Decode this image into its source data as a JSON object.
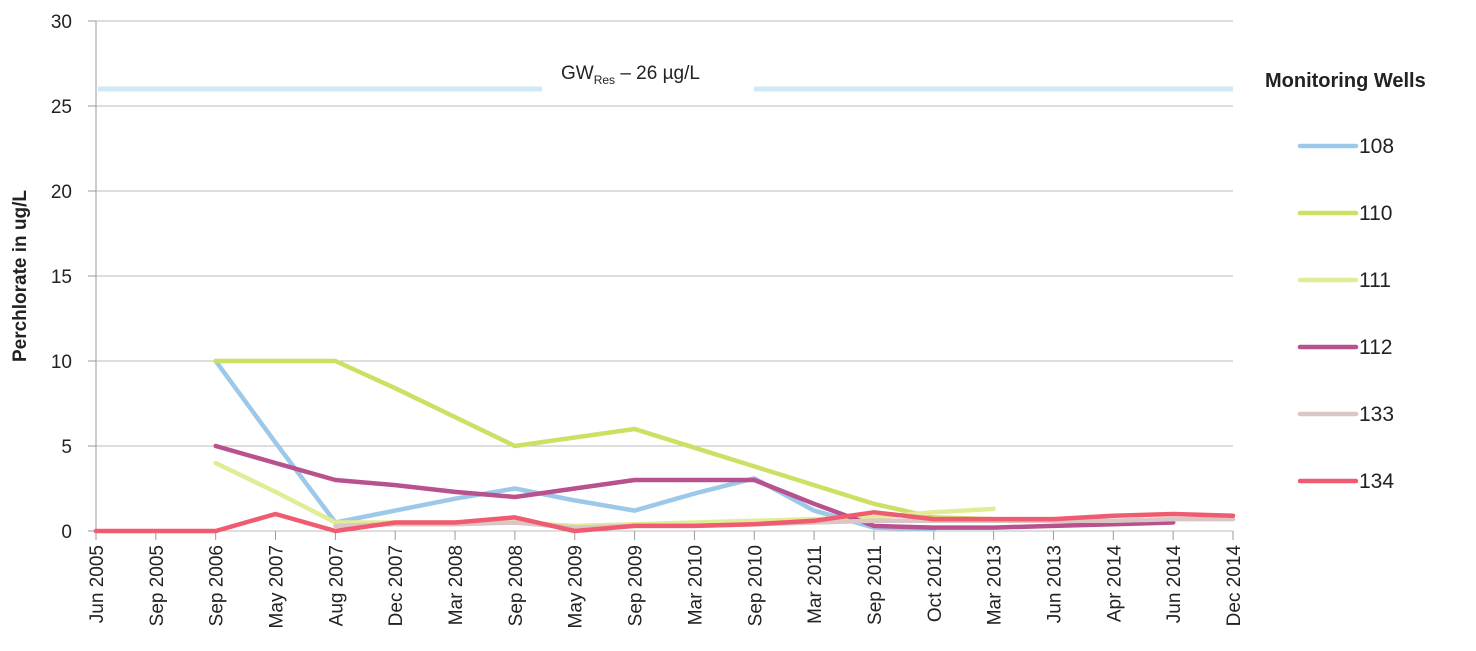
{
  "chart_data": {
    "type": "line",
    "title": "",
    "xlabel": "",
    "ylabel": "Perchlorate in ug/L",
    "ylim": [
      0,
      30
    ],
    "yticks": [
      0,
      5,
      10,
      15,
      20,
      25,
      30
    ],
    "grid": true,
    "legend_title": "Monitoring Wells",
    "legend_position": "right",
    "categories": [
      "Jun 2005",
      "Sep 2005",
      "Sep 2006",
      "May 2007",
      "Aug 2007",
      "Dec 2007",
      "Mar 2008",
      "Sep 2008",
      "May 2009",
      "Sep 2009",
      "Mar 2010",
      "Sep 2010",
      "Mar 2011",
      "Sep 2011",
      "Oct 2012",
      "Mar 2013",
      "Jun 2013",
      "Apr 2014",
      "Jun 2014",
      "Dec 2014"
    ],
    "reference_line": {
      "value": 26,
      "label_main": "GW",
      "label_sub": "Res",
      "label_rest": " – 26 µg/L",
      "color": "#cfe9f6"
    },
    "series": [
      {
        "name": "108",
        "color": "#9cc9ea",
        "values": [
          null,
          null,
          10,
          5.2,
          0.5,
          1.2,
          1.9,
          2.5,
          1.8,
          1.2,
          2.2,
          3.1,
          1.2,
          0.2,
          0.1,
          null,
          null,
          null,
          null,
          null
        ]
      },
      {
        "name": "110",
        "color": "#cde064",
        "values": [
          null,
          null,
          10,
          10,
          10,
          8.4,
          6.7,
          5,
          5.5,
          6,
          4.9,
          3.8,
          2.7,
          1.6,
          0.8,
          0.7,
          null,
          null,
          null,
          null
        ]
      },
      {
        "name": "111",
        "color": "#e2ec96",
        "values": [
          null,
          null,
          4,
          2.3,
          0.5,
          0.5,
          0.5,
          0.5,
          0.3,
          0.4,
          0.5,
          0.6,
          0.7,
          0.8,
          1.1,
          1.3,
          null,
          null,
          0.2,
          null
        ]
      },
      {
        "name": "112",
        "color": "#b8528e",
        "values": [
          null,
          null,
          5,
          4,
          3,
          2.7,
          2.3,
          2,
          2.5,
          3,
          3,
          3,
          1.6,
          0.3,
          0.2,
          0.2,
          0.3,
          0.4,
          0.5,
          null
        ]
      },
      {
        "name": "133",
        "color": "#dcc5c5",
        "values": [
          null,
          null,
          null,
          null,
          0.3,
          0.4,
          0.4,
          0.5,
          0.2,
          0.3,
          0.3,
          0.4,
          0.5,
          0.6,
          0.6,
          0.6,
          0.6,
          0.6,
          0.7,
          0.7
        ]
      },
      {
        "name": "134",
        "color": "#ef5b70",
        "values": [
          0,
          0,
          0,
          1,
          0,
          0.5,
          0.5,
          0.8,
          0,
          0.3,
          0.3,
          0.4,
          0.6,
          1.1,
          0.7,
          0.7,
          0.7,
          0.9,
          1,
          0.9
        ]
      }
    ]
  }
}
